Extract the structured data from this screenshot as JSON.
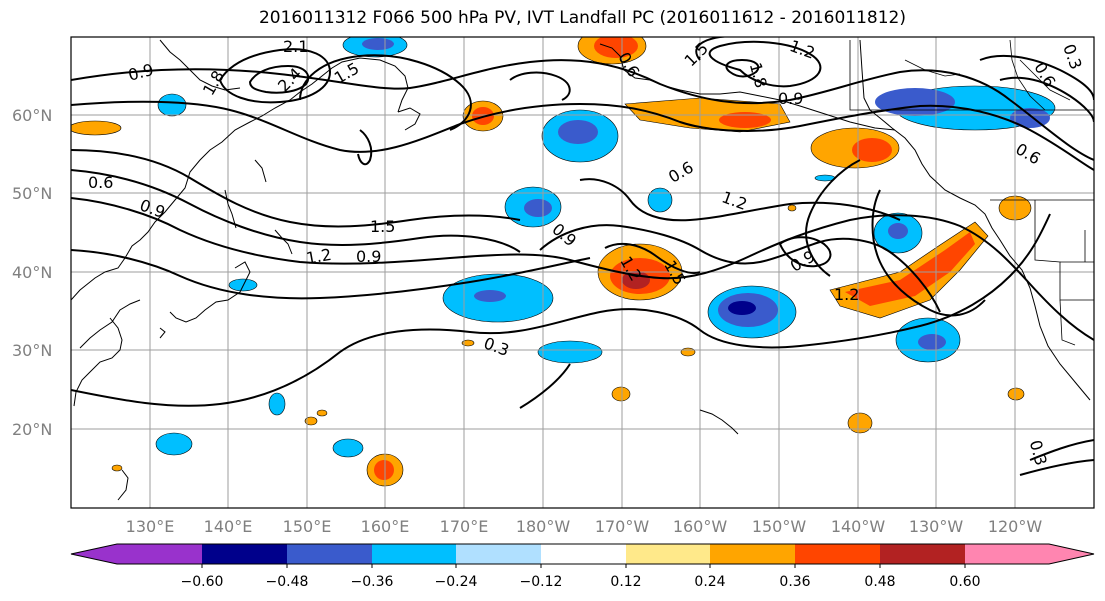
{
  "title": "2016011312 F066 500 hPa PV, IVT Landfall PC (2016011612 - 2016011812)",
  "map": {
    "lat_labels": [
      "60°N",
      "50°N",
      "40°N",
      "30°N",
      "20°N"
    ],
    "lon_labels": [
      "130°E",
      "140°E",
      "150°E",
      "160°E",
      "170°E",
      "180°W",
      "170°W",
      "160°W",
      "150°W",
      "140°W",
      "130°W",
      "120°W"
    ],
    "contour_labels": [
      {
        "text": "0.9"
      },
      {
        "text": "2.1"
      },
      {
        "text": "1.8"
      },
      {
        "text": "2.4"
      },
      {
        "text": "1.5"
      },
      {
        "text": "0.6"
      },
      {
        "text": "0.9"
      },
      {
        "text": "1.5"
      },
      {
        "text": "1.2"
      },
      {
        "text": "0.9"
      },
      {
        "text": "0.3"
      },
      {
        "text": "0.9"
      },
      {
        "text": "1.2"
      },
      {
        "text": "1.5"
      },
      {
        "text": "0.6"
      },
      {
        "text": "1.2"
      },
      {
        "text": "1.8"
      },
      {
        "text": "0.9"
      },
      {
        "text": "1.5"
      },
      {
        "text": "1.2"
      },
      {
        "text": "0.9"
      },
      {
        "text": "1.2"
      },
      {
        "text": "0.6"
      },
      {
        "text": "0.3"
      },
      {
        "text": "0.6"
      },
      {
        "text": "0.3"
      },
      {
        "text": "0.6"
      }
    ]
  },
  "colorbar": {
    "ticks": [
      "−0.60",
      "−0.48",
      "−0.36",
      "−0.24",
      "−0.12",
      "0.12",
      "0.24",
      "0.36",
      "0.48",
      "0.60"
    ],
    "colors": {
      "under": "#9932cc",
      "n060": "#00008b",
      "n048": "#3a5bcc",
      "n036": "#00bfff",
      "n024": "#b0e0ff",
      "zero": "#ffffff",
      "p012": "#ffe98a",
      "p024": "#ffa500",
      "p036": "#ff4500",
      "p048": "#b22222",
      "over": "#ff85b0"
    }
  }
}
